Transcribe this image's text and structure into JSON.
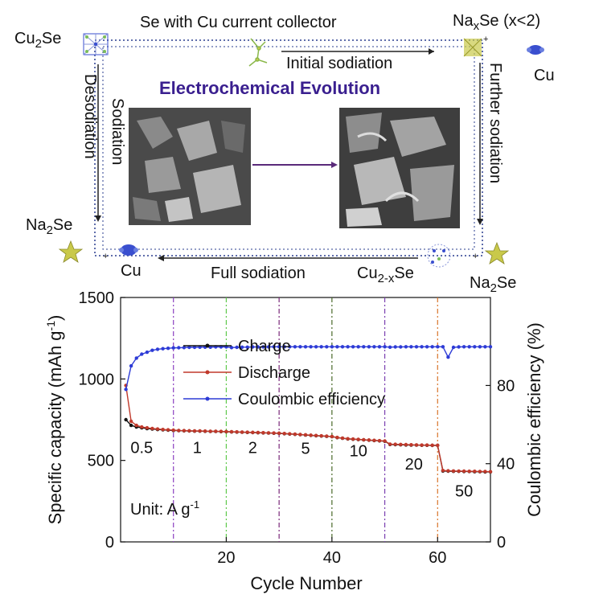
{
  "schematic": {
    "top_title": "Se with  Cu current collector",
    "title": "Electrochemical Evolution",
    "cu2se_label": "Cu",
    "cu2se_sub": "2",
    "cu2se_tail": "Se",
    "naxse_label": "Na",
    "naxse_sub": "x",
    "naxse_tail": "Se (x<2)",
    "cu_right": "Cu",
    "initial_sodiation": "Initial sodiation",
    "further_sodiation": "Further sodiation",
    "desodiation": "Desodiation",
    "sodiation": "Sodiation",
    "na2se_left_label": "Na",
    "na2se_left_sub": "2",
    "na2se_left_tail": "Se",
    "cu_left": "Cu",
    "full_sodiation": "Full sodiation",
    "cu2xse_label": "Cu",
    "cu2xse_sub": "2-x",
    "cu2xse_tail": "Se",
    "na2se_right_label": "Na",
    "na2se_right_sub": "2",
    "na2se_right_tail": "Se",
    "colors": {
      "dotted_line": "#2a3d8f",
      "title": "#3a1f8f",
      "na2se_crystal": "#c9c94a",
      "cu_atom": "#3a4fcf"
    }
  },
  "chart_data": {
    "type": "line",
    "xlabel": "Cycle Number",
    "ylabel_left": "Specific capacity (mAh g",
    "ylabel_left_sup": "-1",
    "ylabel_left_close": ")",
    "ylabel_right": "Coulombic efficiency (%)",
    "xlim": [
      0,
      70
    ],
    "ylim_left": [
      0,
      1500
    ],
    "ylim_right": [
      0,
      125
    ],
    "xticks": [
      20,
      40,
      60
    ],
    "xtick_labels": [
      "20",
      "40",
      "60"
    ],
    "yticks_left": [
      0,
      500,
      1000,
      1500
    ],
    "ytick_labels_left": [
      "0",
      "500",
      "1000",
      "1500"
    ],
    "yticks_right": [
      0,
      40,
      80
    ],
    "ytick_labels_right": [
      "0",
      "40",
      "80"
    ],
    "legend_position": "top-center",
    "unit_text": "Unit: A g",
    "unit_sup": "-1",
    "rate_labels": [
      {
        "text": "0.5",
        "x": 4,
        "y": 545
      },
      {
        "text": "1",
        "x": 14.5,
        "y": 545
      },
      {
        "text": "2",
        "x": 25,
        "y": 545
      },
      {
        "text": "5",
        "x": 35,
        "y": 540
      },
      {
        "text": "10",
        "x": 45,
        "y": 525
      },
      {
        "text": "20",
        "x": 55.5,
        "y": 445
      },
      {
        "text": "50",
        "x": 65,
        "y": 280
      }
    ],
    "rate_boundaries": [
      {
        "x": 10,
        "color": "#8a3fc0"
      },
      {
        "x": 20,
        "color": "#5ec84a"
      },
      {
        "x": 30,
        "color": "#7a2a7a"
      },
      {
        "x": 40,
        "color": "#4a6a2a"
      },
      {
        "x": 50,
        "color": "#7a3fb0"
      },
      {
        "x": 60,
        "color": "#d9742a"
      }
    ],
    "series": [
      {
        "name": "Charge",
        "color": "#111111",
        "axis": "left",
        "x": [
          1,
          2,
          3,
          4,
          5,
          6,
          7,
          8,
          9,
          10,
          11,
          12,
          13,
          14,
          15,
          16,
          17,
          18,
          19,
          20,
          21,
          22,
          23,
          24,
          25,
          26,
          27,
          28,
          29,
          30,
          31,
          32,
          33,
          34,
          35,
          36,
          37,
          38,
          39,
          40,
          41,
          42,
          43,
          44,
          45,
          46,
          47,
          48,
          49,
          50,
          51,
          52,
          53,
          54,
          55,
          56,
          57,
          58,
          59,
          60,
          61,
          62,
          63,
          64,
          65,
          66,
          67,
          68,
          69,
          70
        ],
        "values": [
          750,
          715,
          705,
          700,
          695,
          693,
          690,
          688,
          686,
          684,
          683,
          682,
          681,
          680,
          680,
          679,
          678,
          678,
          677,
          676,
          675,
          674,
          673,
          672,
          671,
          670,
          669,
          668,
          667,
          666,
          664,
          662,
          660,
          658,
          656,
          654,
          652,
          650,
          648,
          646,
          640,
          636,
          632,
          630,
          628,
          626,
          624,
          622,
          620,
          618,
          598,
          597,
          596,
          595,
          594,
          594,
          593,
          593,
          592,
          592,
          435,
          434,
          433,
          433,
          432,
          432,
          431,
          431,
          430,
          430
        ]
      },
      {
        "name": "Discharge",
        "color": "#c0392b",
        "axis": "left",
        "x": [
          1,
          2,
          3,
          4,
          5,
          6,
          7,
          8,
          9,
          10,
          11,
          12,
          13,
          14,
          15,
          16,
          17,
          18,
          19,
          20,
          21,
          22,
          23,
          24,
          25,
          26,
          27,
          28,
          29,
          30,
          31,
          32,
          33,
          34,
          35,
          36,
          37,
          38,
          39,
          40,
          41,
          42,
          43,
          44,
          45,
          46,
          47,
          48,
          49,
          50,
          51,
          52,
          53,
          54,
          55,
          56,
          57,
          58,
          59,
          60,
          61,
          62,
          63,
          64,
          65,
          66,
          67,
          68,
          69,
          70
        ],
        "values": [
          960,
          740,
          715,
          705,
          700,
          696,
          693,
          690,
          688,
          686,
          684,
          683,
          682,
          681,
          681,
          680,
          679,
          679,
          678,
          677,
          676,
          675,
          674,
          673,
          672,
          671,
          670,
          669,
          668,
          667,
          665,
          663,
          661,
          659,
          657,
          655,
          653,
          651,
          649,
          647,
          641,
          637,
          633,
          631,
          629,
          627,
          625,
          623,
          621,
          619,
          600,
          599,
          598,
          597,
          596,
          595,
          594,
          594,
          593,
          593,
          438,
          436,
          435,
          434,
          434,
          433,
          433,
          432,
          432,
          431
        ]
      },
      {
        "name": "Coulombic efficiency",
        "color": "#2d3bd6",
        "axis": "right",
        "x": [
          1,
          2,
          3,
          4,
          5,
          6,
          7,
          8,
          9,
          10,
          11,
          12,
          13,
          14,
          15,
          16,
          17,
          18,
          19,
          20,
          21,
          22,
          23,
          24,
          25,
          26,
          27,
          28,
          29,
          30,
          31,
          32,
          33,
          34,
          35,
          36,
          37,
          38,
          39,
          40,
          41,
          42,
          43,
          44,
          45,
          46,
          47,
          48,
          49,
          50,
          51,
          52,
          53,
          54,
          55,
          56,
          57,
          58,
          59,
          60,
          61,
          62,
          63,
          64,
          65,
          66,
          67,
          68,
          69,
          70
        ],
        "values": [
          78,
          90,
          94,
          96,
          97,
          98,
          98.5,
          98.8,
          99,
          99.2,
          99.3,
          99.4,
          99.5,
          99.5,
          99.6,
          99.6,
          99.6,
          99.7,
          99.7,
          99.7,
          99.4,
          99.5,
          99.6,
          99.6,
          99.7,
          99.7,
          99.7,
          99.7,
          99.8,
          99.8,
          99.8,
          99.8,
          99.8,
          99.8,
          99.8,
          99.8,
          99.8,
          99.8,
          99.8,
          99.8,
          99.8,
          99.8,
          99.8,
          99.8,
          99.8,
          99.8,
          99.8,
          99.8,
          99.8,
          99.8,
          99.6,
          99.7,
          99.7,
          99.8,
          99.8,
          99.8,
          99.8,
          99.8,
          99.8,
          99.8,
          99.8,
          94.5,
          99.5,
          99.7,
          99.8,
          99.8,
          99.8,
          99.8,
          99.8,
          99.8
        ]
      }
    ]
  }
}
